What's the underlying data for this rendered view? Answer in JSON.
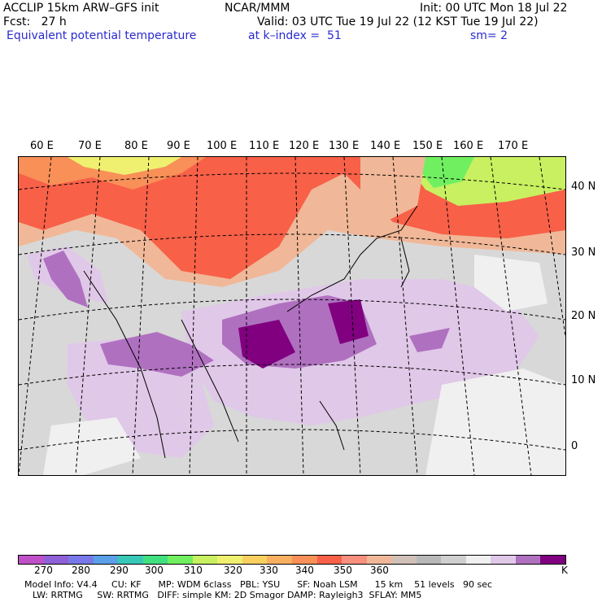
{
  "header": {
    "model_line": "ACCLIP 15km ARW–GFS init",
    "org": "NCAR/MMM",
    "init": "Init: 00 UTC Mon 18 Jul 22",
    "fcst": "Fcst:   27 h",
    "valid": "Valid: 03 UTC Tue 19 Jul 22 (12 KST Tue 19 Jul 22)",
    "field": "Equivalent potential temperature",
    "level": "at k–index =  51",
    "smooth": "sm= 2"
  },
  "map": {
    "lon_labels": [
      "60 E",
      "70 E",
      "80 E",
      "90 E",
      "100 E",
      "110 E",
      "120 E",
      "130 E",
      "140 E",
      "150 E",
      "160 E",
      "170 E"
    ],
    "lat_labels": [
      "40 N",
      "30 N",
      "20 N",
      "10 N",
      "0"
    ]
  },
  "colorbar": {
    "unit": "K",
    "tick_labels": [
      "270",
      "280",
      "290",
      "300",
      "310",
      "320",
      "330",
      "340",
      "350",
      "360"
    ],
    "colors": [
      "#c050c8",
      "#9060d8",
      "#7878e8",
      "#5aa0e8",
      "#38c8b8",
      "#40e080",
      "#70f060",
      "#c8f060",
      "#f0f070",
      "#f8d060",
      "#f8b060",
      "#f89058",
      "#f86048",
      "#f89080",
      "#f0b898",
      "#d0c0b8",
      "#b8b8b8",
      "#d0d0d0",
      "#f0f0f0",
      "#e0c8e8",
      "#b070c0",
      "#800080"
    ]
  },
  "footer": {
    "line1": "Model Info: V4.4     CU: KF      MP: WDM 6class   PBL: YSU      SF: Noah LSM      15 km    51 levels   90 sec",
    "line2": "LW: RRTMG     SW: RRTMG   DIFF: simple KM: 2D Smagor DAMP: Rayleigh3  SFLAY: MM5"
  }
}
